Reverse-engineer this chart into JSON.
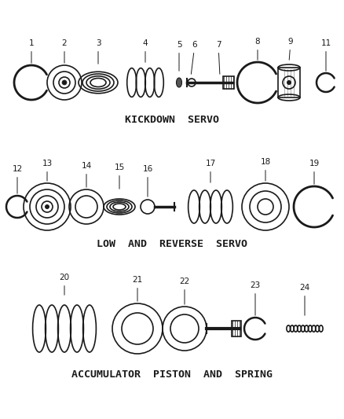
{
  "background_color": "#ffffff",
  "line_color": "#1a1a1a",
  "section1_label": "KICKDOWN  SERVO",
  "section2_label": "LOW  AND  REVERSE  SERVO",
  "section3_label": "ACCUMULATOR  PISTON  AND  SPRING"
}
